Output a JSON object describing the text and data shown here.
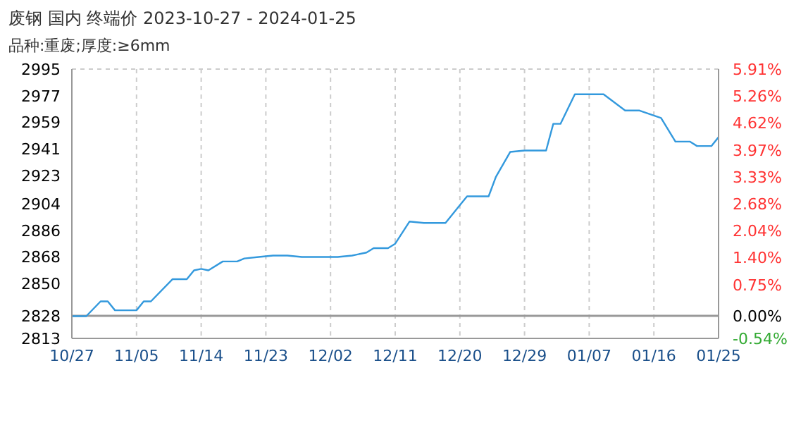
{
  "chart_data": {
    "type": "line",
    "title": "废钢 国内 终端价 2023-10-27 - 2024-01-25",
    "subtitle": "品种:重废;厚度:≥6mm",
    "x": [
      "2023-10-27",
      "2023-10-29",
      "2023-10-31",
      "2023-11-01",
      "2023-11-02",
      "2023-11-05",
      "2023-11-06",
      "2023-11-07",
      "2023-11-10",
      "2023-11-12",
      "2023-11-13",
      "2023-11-14",
      "2023-11-15",
      "2023-11-17",
      "2023-11-19",
      "2023-11-20",
      "2023-11-22",
      "2023-11-24",
      "2023-11-26",
      "2023-11-28",
      "2023-12-03",
      "2023-12-05",
      "2023-12-07",
      "2023-12-08",
      "2023-12-10",
      "2023-12-11",
      "2023-12-13",
      "2023-12-15",
      "2023-12-18",
      "2023-12-20",
      "2023-12-21",
      "2023-12-24",
      "2023-12-25",
      "2023-12-27",
      "2023-12-29",
      "2024-01-01",
      "2024-01-02",
      "2024-01-03",
      "2024-01-05",
      "2024-01-09",
      "2024-01-12",
      "2024-01-14",
      "2024-01-17",
      "2024-01-19",
      "2024-01-21",
      "2024-01-22",
      "2024-01-24",
      "2024-01-25"
    ],
    "series": [
      {
        "color": "#3399dd",
        "values": [
          2828,
          2828,
          2838,
          2838,
          2832,
          2832,
          2838,
          2838,
          2853,
          2853,
          2859,
          2860,
          2859,
          2865,
          2865,
          2867,
          2868,
          2869,
          2869,
          2868,
          2868,
          2869,
          2871,
          2874,
          2874,
          2877,
          2892,
          2891,
          2891,
          2903,
          2909,
          2909,
          2922,
          2939,
          2940,
          2940,
          2958,
          2958,
          2978,
          2978,
          2967,
          2967,
          2962,
          2946,
          2946,
          2943,
          2943,
          2949
        ]
      }
    ],
    "xlim": [
      "2023-10-27",
      "2024-01-25"
    ],
    "xticks": [
      {
        "value": "2023-10-27",
        "label": "10/27"
      },
      {
        "value": "2023-11-05",
        "label": "11/05"
      },
      {
        "value": "2023-11-14",
        "label": "11/14"
      },
      {
        "value": "2023-11-23",
        "label": "11/23"
      },
      {
        "value": "2023-12-02",
        "label": "12/02"
      },
      {
        "value": "2023-12-11",
        "label": "12/11"
      },
      {
        "value": "2023-12-20",
        "label": "12/20"
      },
      {
        "value": "2023-12-29",
        "label": "12/29"
      },
      {
        "value": "2024-01-07",
        "label": "01/07"
      },
      {
        "value": "2024-01-16",
        "label": "01/16"
      },
      {
        "value": "2024-01-25",
        "label": "01/25"
      }
    ],
    "ylim": [
      2813,
      2995
    ],
    "yticks": [
      2813,
      2828,
      2850,
      2868,
      2886,
      2904,
      2923,
      2941,
      2959,
      2977,
      2995
    ],
    "y2lim": [
      -0.54,
      5.91
    ],
    "y2ticks": [
      {
        "value": -0.54,
        "label": "-0.54%"
      },
      {
        "value": 0,
        "label": "0.00%"
      },
      {
        "value": 0.75,
        "label": "0.75%"
      },
      {
        "value": 1.4,
        "label": "1.40%"
      },
      {
        "value": 2.04,
        "label": "2.04%"
      },
      {
        "value": 2.68,
        "label": "2.68%"
      },
      {
        "value": 3.33,
        "label": "3.33%"
      },
      {
        "value": 3.97,
        "label": "3.97%"
      },
      {
        "value": 4.62,
        "label": "4.62%"
      },
      {
        "value": 5.26,
        "label": "5.26%"
      },
      {
        "value": 5.91,
        "label": "5.91%"
      }
    ],
    "ref_lines": [
      {
        "axis": "y2",
        "value": 0,
        "color": "#999999"
      }
    ],
    "grid": true,
    "marker": "none",
    "line_style": "solid"
  }
}
